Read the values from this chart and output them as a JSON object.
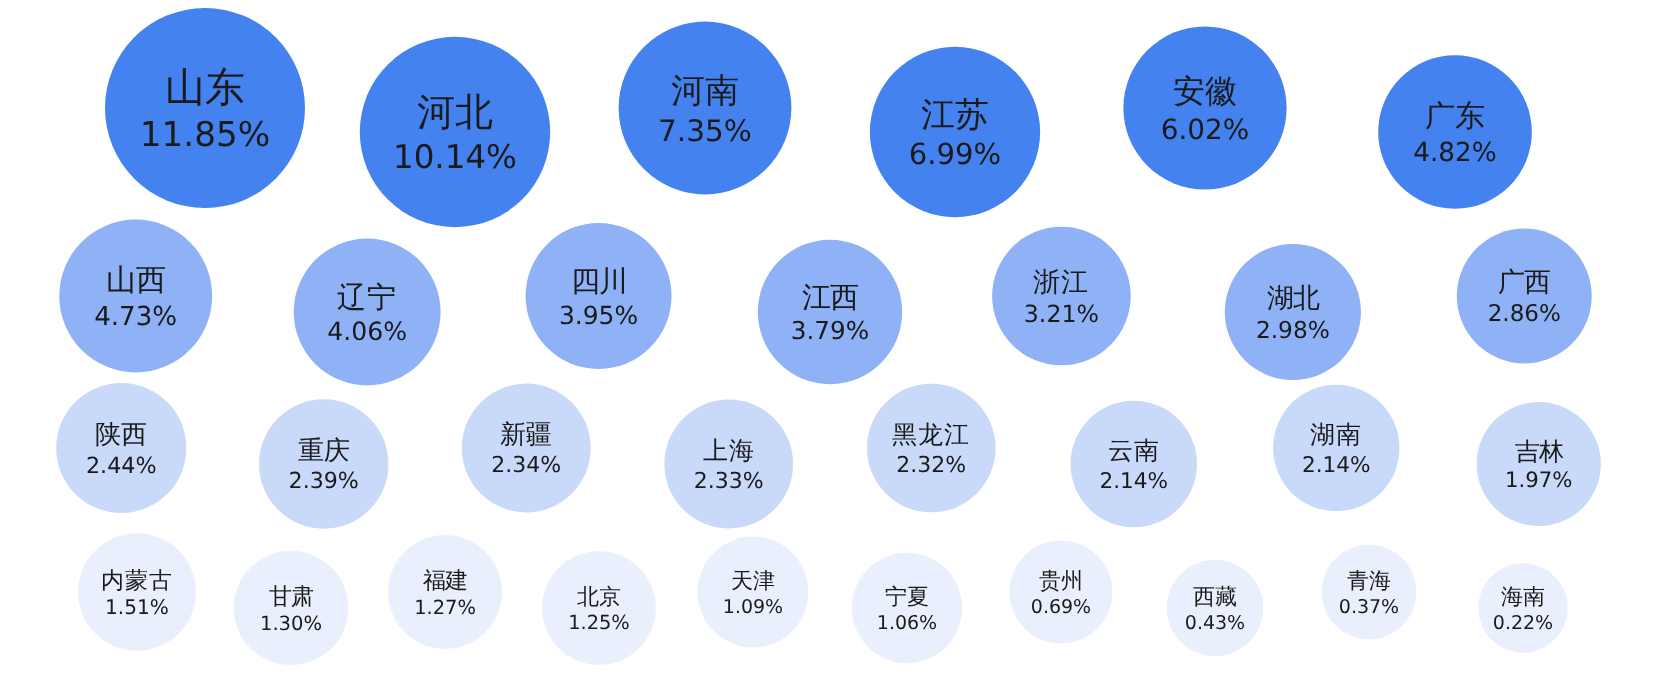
{
  "chart_data": {
    "type": "other",
    "categories": [
      "山东",
      "河北",
      "河南",
      "江苏",
      "安徽",
      "广东",
      "山西",
      "辽宁",
      "四川",
      "江西",
      "浙江",
      "湖北",
      "广西",
      "陕西",
      "重庆",
      "新疆",
      "上海",
      "黑龙江",
      "云南",
      "湖南",
      "吉林",
      "内蒙古",
      "甘肃",
      "福建",
      "北京",
      "天津",
      "宁夏",
      "贵州",
      "西藏",
      "青海",
      "海南"
    ],
    "values": [
      11.85,
      10.14,
      7.35,
      6.99,
      6.02,
      4.82,
      4.73,
      4.06,
      3.95,
      3.79,
      3.21,
      2.98,
      2.86,
      2.44,
      2.39,
      2.34,
      2.33,
      2.32,
      2.14,
      2.14,
      1.97,
      1.51,
      1.3,
      1.27,
      1.25,
      1.09,
      1.06,
      0.69,
      0.43,
      0.37,
      0.22
    ],
    "value_labels": [
      "11.85%",
      "10.14%",
      "7.35%",
      "6.99%",
      "6.02%",
      "4.82%",
      "4.73%",
      "4.06%",
      "3.95%",
      "3.79%",
      "3.21%",
      "2.98%",
      "2.86%",
      "2.44%",
      "2.39%",
      "2.34%",
      "2.33%",
      "2.32%",
      "2.14%",
      "2.14%",
      "1.97%",
      "1.51%",
      "1.30%",
      "1.27%",
      "1.25%",
      "1.09%",
      "1.06%",
      "0.69%",
      "0.43%",
      "0.37%",
      "0.22%"
    ],
    "colors": [
      "#4482f0",
      "#4482f0",
      "#4482f0",
      "#4482f0",
      "#4482f0",
      "#4482f0",
      "#8fb1f5",
      "#8fb1f5",
      "#8fb1f5",
      "#8fb1f5",
      "#8fb1f5",
      "#8fb1f5",
      "#8fb1f5",
      "#c9d9fa",
      "#c9d9fa",
      "#c9d9fa",
      "#c9d9fa",
      "#c9d9fa",
      "#c9d9fa",
      "#c9d9fa",
      "#c9d9fa",
      "#e9effc",
      "#e9effc",
      "#e9effc",
      "#e9effc",
      "#e9effc",
      "#e9effc",
      "#e9effc",
      "#e9effc",
      "#e9effc",
      "#e9effc"
    ]
  }
}
